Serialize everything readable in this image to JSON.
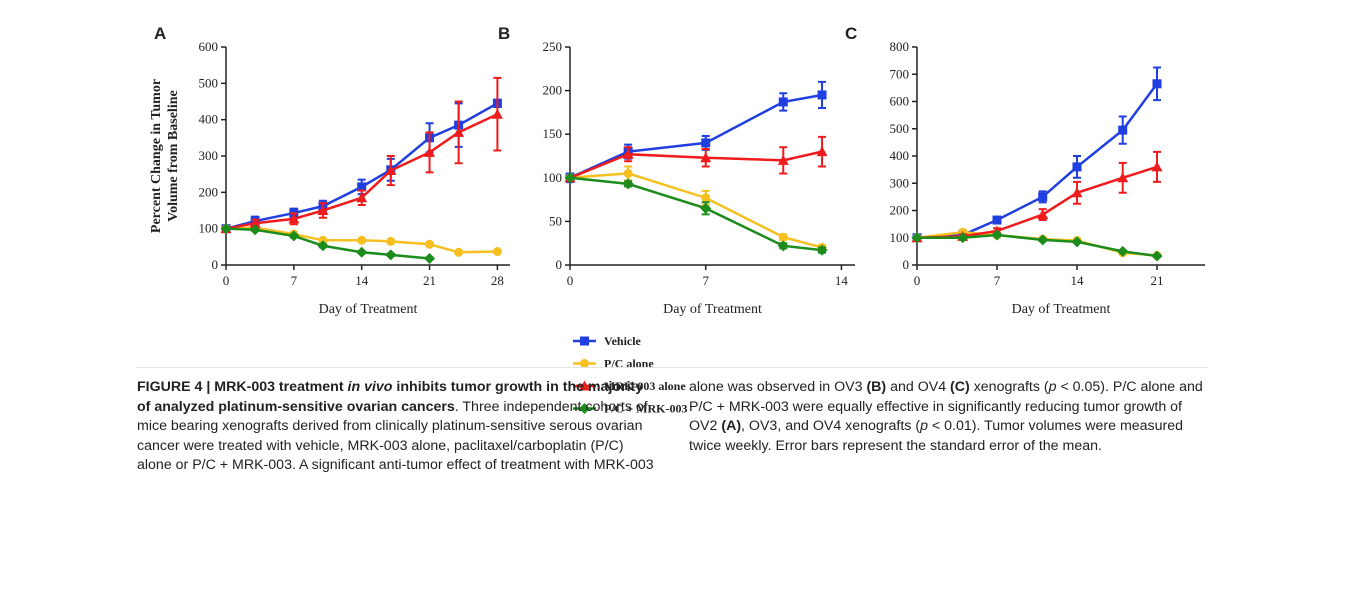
{
  "chart_data": [
    {
      "type": "line",
      "panel": "A",
      "y_label": [
        "Percent Change in Tumor",
        "Volume from Baseline"
      ],
      "x_label": "Day of Treatment",
      "x": [
        0,
        3,
        7,
        10,
        14,
        17,
        21,
        24,
        28
      ],
      "xlim": [
        0,
        29.3
      ],
      "xticks": [
        0,
        7,
        14,
        21,
        28
      ],
      "ylim": [
        0,
        600
      ],
      "yticks": [
        0,
        100,
        200,
        300,
        400,
        500,
        600
      ],
      "series": [
        {
          "values": [
            100,
            121,
            143,
            162,
            215,
            262,
            350,
            385,
            445
          ],
          "errors": [
            5,
            12,
            12,
            15,
            20,
            30,
            40,
            60,
            10
          ]
        },
        {
          "values": [
            100,
            103,
            85,
            68,
            68,
            65,
            57,
            35,
            37
          ],
          "errors": [
            0,
            3,
            4,
            4,
            3,
            4,
            4,
            3,
            3
          ]
        },
        {
          "values": [
            100,
            115,
            127,
            150,
            185,
            260,
            310,
            365,
            415
          ],
          "errors": [
            5,
            10,
            15,
            20,
            20,
            40,
            55,
            85,
            100
          ]
        },
        {
          "values": [
            100,
            97,
            80,
            53,
            35,
            28,
            18,
            null,
            null
          ],
          "errors": [
            0,
            3,
            4,
            4,
            3,
            3,
            3,
            null,
            null
          ]
        }
      ]
    },
    {
      "type": "line",
      "panel": "B",
      "x_label": "Day of Treatment",
      "x": [
        0,
        3,
        7,
        11,
        13
      ],
      "xlim": [
        0,
        14.7
      ],
      "xticks": [
        0,
        7,
        14
      ],
      "ylim": [
        0,
        250
      ],
      "yticks": [
        0,
        50,
        100,
        150,
        200,
        250
      ],
      "series": [
        {
          "values": [
            100,
            130,
            140,
            187,
            195
          ],
          "errors": [
            5,
            8,
            8,
            10,
            15
          ]
        },
        {
          "values": [
            100,
            105,
            77,
            32,
            20
          ],
          "errors": [
            0,
            8,
            8,
            3,
            3
          ]
        },
        {
          "values": [
            100,
            127,
            123,
            120,
            130
          ],
          "errors": [
            0,
            8,
            10,
            15,
            17
          ]
        },
        {
          "values": [
            100,
            93,
            65,
            22,
            17
          ],
          "errors": [
            0,
            3,
            7,
            3,
            3
          ]
        }
      ]
    },
    {
      "type": "line",
      "panel": "C",
      "x_label": "Day of Treatment",
      "x": [
        0,
        4,
        7,
        11,
        14,
        18,
        21
      ],
      "xlim": [
        0,
        25.2
      ],
      "xticks": [
        0,
        7,
        14,
        21
      ],
      "ylim": [
        0,
        800
      ],
      "yticks": [
        0,
        100,
        200,
        300,
        400,
        500,
        600,
        700,
        800
      ],
      "series": [
        {
          "values": [
            100,
            110,
            165,
            250,
            360,
            495,
            665
          ],
          "errors": [
            5,
            8,
            10,
            20,
            40,
            50,
            60
          ]
        },
        {
          "values": [
            100,
            120,
            110,
            95,
            90,
            45,
            35
          ],
          "errors": [
            0,
            8,
            6,
            6,
            6,
            4,
            4
          ]
        },
        {
          "values": [
            100,
            105,
            125,
            185,
            265,
            320,
            360
          ],
          "errors": [
            0,
            8,
            10,
            20,
            40,
            55,
            55
          ]
        },
        {
          "values": [
            100,
            100,
            110,
            92,
            85,
            50,
            33
          ],
          "errors": [
            0,
            4,
            5,
            4,
            4,
            4,
            3
          ]
        }
      ]
    }
  ],
  "legend": {
    "series": [
      {
        "name": "Vehicle",
        "color": "#1f3fe0",
        "marker": "square"
      },
      {
        "name": "P/C alone",
        "color": "#f5c020",
        "marker": "circle"
      },
      {
        "name": "MRK-003 alone",
        "color": "#ee1c1c",
        "marker": "triangle"
      },
      {
        "name": "P/C + MRK-003",
        "color": "#1c8c1c",
        "marker": "diamond"
      }
    ]
  },
  "caption": {
    "runs": [
      {
        "text": "FIGURE 4 | MRK-003 treatment ",
        "bold": true
      },
      {
        "text": "in vivo",
        "bold": true,
        "italic": true
      },
      {
        "text": " inhibits tumor growth in the majority of analyzed platinum-sensitive ovarian cancers",
        "bold": true
      },
      {
        "text": ". Three independent cohorts of mice bearing xenografts derived from clinically platinum-sensitive serous ovarian cancer were treated with vehicle, MRK-003 alone, paclitaxel/carboplatin (P/C) alone or P/C + MRK-003. A significant anti-tumor effect of treatment with MRK-003 alone was observed in OV3 "
      },
      {
        "text": "(B)",
        "bold": true
      },
      {
        "text": " and OV4 "
      },
      {
        "text": "(C)",
        "bold": true
      },
      {
        "text": " xenografts ("
      },
      {
        "text": "p",
        "italic": true
      },
      {
        "text": " < 0.05). P/C alone and P/C + MRK-003 were equally effective in significantly reducing tumor growth of OV2 "
      },
      {
        "text": "(A)",
        "bold": true
      },
      {
        "text": ", OV3, and OV4 xenografts ("
      },
      {
        "text": "p",
        "italic": true
      },
      {
        "text": " < 0.01). Tumor volumes were measured twice weekly. Error bars represent the standard error of the mean."
      }
    ]
  }
}
